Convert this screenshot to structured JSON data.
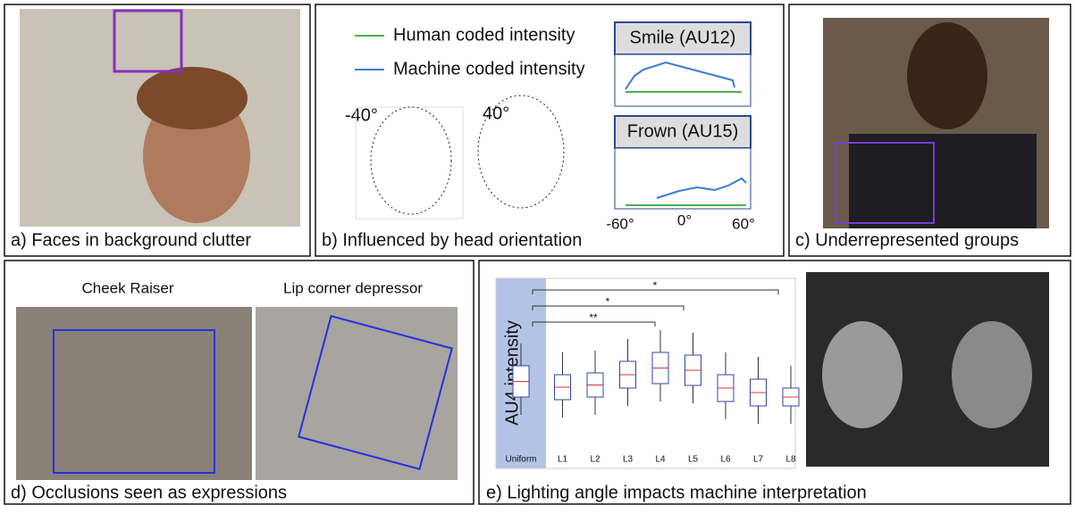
{
  "panels": {
    "a": {
      "caption": "a) Faces in background clutter"
    },
    "b": {
      "caption": "b) Influenced by head orientation",
      "legend": [
        "Human coded intensity",
        "Machine coded intensity"
      ],
      "angles": [
        "-40°",
        "40°"
      ],
      "plots": [
        "Smile (AU12)",
        "Frown (AU15)"
      ],
      "x_labels": [
        "-60°",
        "0°",
        "60°"
      ]
    },
    "c": {
      "caption": "c) Underrepresented groups"
    },
    "d": {
      "caption": "d) Occlusions seen as expressions",
      "labels": [
        "Cheek Raiser",
        "Lip corner depressor"
      ]
    },
    "e": {
      "caption": "e) Lighting angle impacts machine interpretation",
      "y_label": "AU4 intensity",
      "categories": [
        "Uniform",
        "L1",
        "L2",
        "L3",
        "L4",
        "L5",
        "L6",
        "L7",
        "L8"
      ],
      "significance": [
        "*",
        "*",
        "**"
      ]
    }
  }
}
